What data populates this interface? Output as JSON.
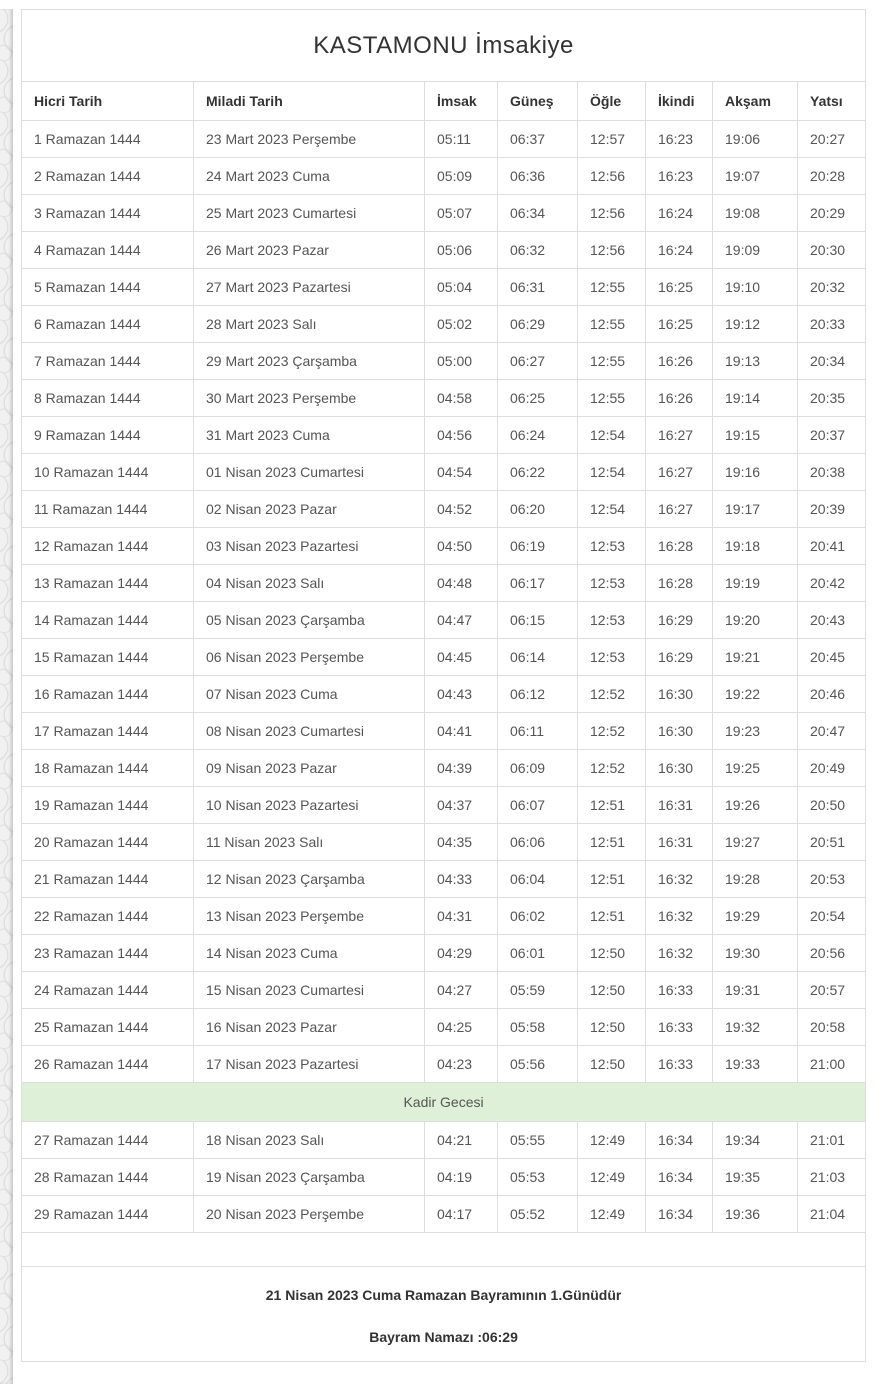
{
  "page": {
    "title": "KASTAMONU İmsakiye"
  },
  "colors": {
    "kadir_row_background": "#dff0d8",
    "table_border": "#dddddd",
    "cell_text": "#555555",
    "heading_text": "#333333"
  },
  "table": {
    "columns": [
      "Hicri Tarih",
      "Miladi Tarih",
      "İmsak",
      "Güneş",
      "Öğle",
      "İkindi",
      "Akşam",
      "Yatsı"
    ],
    "rows_before_kadir": [
      [
        "1 Ramazan 1444",
        "23 Mart 2023 Perşembe",
        "05:11",
        "06:37",
        "12:57",
        "16:23",
        "19:06",
        "20:27"
      ],
      [
        "2 Ramazan 1444",
        "24 Mart 2023 Cuma",
        "05:09",
        "06:36",
        "12:56",
        "16:23",
        "19:07",
        "20:28"
      ],
      [
        "3 Ramazan 1444",
        "25 Mart 2023 Cumartesi",
        "05:07",
        "06:34",
        "12:56",
        "16:24",
        "19:08",
        "20:29"
      ],
      [
        "4 Ramazan 1444",
        "26 Mart 2023 Pazar",
        "05:06",
        "06:32",
        "12:56",
        "16:24",
        "19:09",
        "20:30"
      ],
      [
        "5 Ramazan 1444",
        "27 Mart 2023 Pazartesi",
        "05:04",
        "06:31",
        "12:55",
        "16:25",
        "19:10",
        "20:32"
      ],
      [
        "6 Ramazan 1444",
        "28 Mart 2023 Salı",
        "05:02",
        "06:29",
        "12:55",
        "16:25",
        "19:12",
        "20:33"
      ],
      [
        "7 Ramazan 1444",
        "29 Mart 2023 Çarşamba",
        "05:00",
        "06:27",
        "12:55",
        "16:26",
        "19:13",
        "20:34"
      ],
      [
        "8 Ramazan 1444",
        "30 Mart 2023 Perşembe",
        "04:58",
        "06:25",
        "12:55",
        "16:26",
        "19:14",
        "20:35"
      ],
      [
        "9 Ramazan 1444",
        "31 Mart 2023 Cuma",
        "04:56",
        "06:24",
        "12:54",
        "16:27",
        "19:15",
        "20:37"
      ],
      [
        "10 Ramazan 1444",
        "01 Nisan 2023 Cumartesi",
        "04:54",
        "06:22",
        "12:54",
        "16:27",
        "19:16",
        "20:38"
      ],
      [
        "11 Ramazan 1444",
        "02 Nisan 2023 Pazar",
        "04:52",
        "06:20",
        "12:54",
        "16:27",
        "19:17",
        "20:39"
      ],
      [
        "12 Ramazan 1444",
        "03 Nisan 2023 Pazartesi",
        "04:50",
        "06:19",
        "12:53",
        "16:28",
        "19:18",
        "20:41"
      ],
      [
        "13 Ramazan 1444",
        "04 Nisan 2023 Salı",
        "04:48",
        "06:17",
        "12:53",
        "16:28",
        "19:19",
        "20:42"
      ],
      [
        "14 Ramazan 1444",
        "05 Nisan 2023 Çarşamba",
        "04:47",
        "06:15",
        "12:53",
        "16:29",
        "19:20",
        "20:43"
      ],
      [
        "15 Ramazan 1444",
        "06 Nisan 2023 Perşembe",
        "04:45",
        "06:14",
        "12:53",
        "16:29",
        "19:21",
        "20:45"
      ],
      [
        "16 Ramazan 1444",
        "07 Nisan 2023 Cuma",
        "04:43",
        "06:12",
        "12:52",
        "16:30",
        "19:22",
        "20:46"
      ],
      [
        "17 Ramazan 1444",
        "08 Nisan 2023 Cumartesi",
        "04:41",
        "06:11",
        "12:52",
        "16:30",
        "19:23",
        "20:47"
      ],
      [
        "18 Ramazan 1444",
        "09 Nisan 2023 Pazar",
        "04:39",
        "06:09",
        "12:52",
        "16:30",
        "19:25",
        "20:49"
      ],
      [
        "19 Ramazan 1444",
        "10 Nisan 2023 Pazartesi",
        "04:37",
        "06:07",
        "12:51",
        "16:31",
        "19:26",
        "20:50"
      ],
      [
        "20 Ramazan 1444",
        "11 Nisan 2023 Salı",
        "04:35",
        "06:06",
        "12:51",
        "16:31",
        "19:27",
        "20:51"
      ],
      [
        "21 Ramazan 1444",
        "12 Nisan 2023 Çarşamba",
        "04:33",
        "06:04",
        "12:51",
        "16:32",
        "19:28",
        "20:53"
      ],
      [
        "22 Ramazan 1444",
        "13 Nisan 2023 Perşembe",
        "04:31",
        "06:02",
        "12:51",
        "16:32",
        "19:29",
        "20:54"
      ],
      [
        "23 Ramazan 1444",
        "14 Nisan 2023 Cuma",
        "04:29",
        "06:01",
        "12:50",
        "16:32",
        "19:30",
        "20:56"
      ],
      [
        "24 Ramazan 1444",
        "15 Nisan 2023 Cumartesi",
        "04:27",
        "05:59",
        "12:50",
        "16:33",
        "19:31",
        "20:57"
      ],
      [
        "25 Ramazan 1444",
        "16 Nisan 2023 Pazar",
        "04:25",
        "05:58",
        "12:50",
        "16:33",
        "19:32",
        "20:58"
      ],
      [
        "26 Ramazan 1444",
        "17 Nisan 2023 Pazartesi",
        "04:23",
        "05:56",
        "12:50",
        "16:33",
        "19:33",
        "21:00"
      ]
    ],
    "kadir_label": "Kadir Gecesi",
    "rows_after_kadir": [
      [
        "27 Ramazan 1444",
        "18 Nisan 2023 Salı",
        "04:21",
        "05:55",
        "12:49",
        "16:34",
        "19:34",
        "21:01"
      ],
      [
        "28 Ramazan 1444",
        "19 Nisan 2023 Çarşamba",
        "04:19",
        "05:53",
        "12:49",
        "16:34",
        "19:35",
        "21:03"
      ],
      [
        "29 Ramazan 1444",
        "20 Nisan 2023 Perşembe",
        "04:17",
        "05:52",
        "12:49",
        "16:34",
        "19:36",
        "21:04"
      ]
    ]
  },
  "footer": {
    "line1": "21 Nisan 2023 Cuma Ramazan Bayramının 1.Günüdür",
    "line2": "Bayram Namazı :06:29"
  }
}
